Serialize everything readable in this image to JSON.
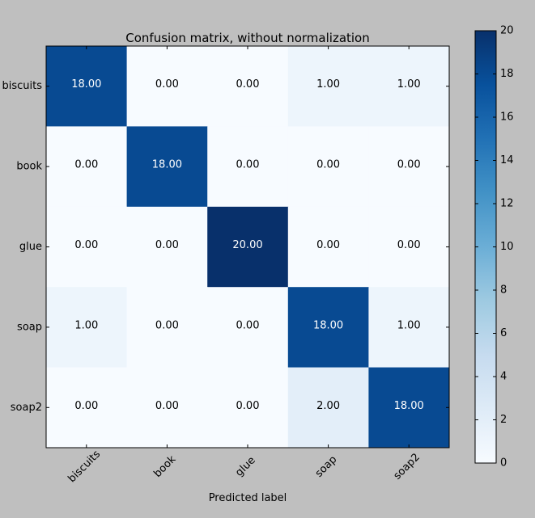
{
  "chart_data": {
    "type": "heatmap",
    "title": "Confusion matrix, without normalization",
    "xlabel": "Predicted label",
    "ylabel": "",
    "x_categories": [
      "biscuits",
      "book",
      "glue",
      "soap",
      "soap2"
    ],
    "y_categories": [
      "biscuits",
      "book",
      "glue",
      "soap",
      "soap2"
    ],
    "values": [
      [
        18,
        0,
        0,
        1,
        1
      ],
      [
        0,
        18,
        0,
        0,
        0
      ],
      [
        0,
        0,
        20,
        0,
        0
      ],
      [
        1,
        0,
        0,
        18,
        1
      ],
      [
        0,
        0,
        0,
        2,
        18
      ]
    ],
    "cell_labels": [
      [
        "18.00",
        "0.00",
        "0.00",
        "1.00",
        "1.00"
      ],
      [
        "0.00",
        "18.00",
        "0.00",
        "0.00",
        "0.00"
      ],
      [
        "0.00",
        "0.00",
        "20.00",
        "0.00",
        "0.00"
      ],
      [
        "1.00",
        "0.00",
        "0.00",
        "18.00",
        "1.00"
      ],
      [
        "0.00",
        "0.00",
        "0.00",
        "2.00",
        "18.00"
      ]
    ],
    "colormap": "Blues",
    "colorbar": {
      "range": [
        0,
        20
      ],
      "ticks": [
        0,
        2,
        4,
        6,
        8,
        10,
        12,
        14,
        16,
        18,
        20
      ]
    },
    "colors": {
      "background": "#bfbfbf",
      "low": "#f7fbff",
      "high": "#08306b",
      "text_light": "#ffffff",
      "text_dark": "#000000"
    }
  }
}
